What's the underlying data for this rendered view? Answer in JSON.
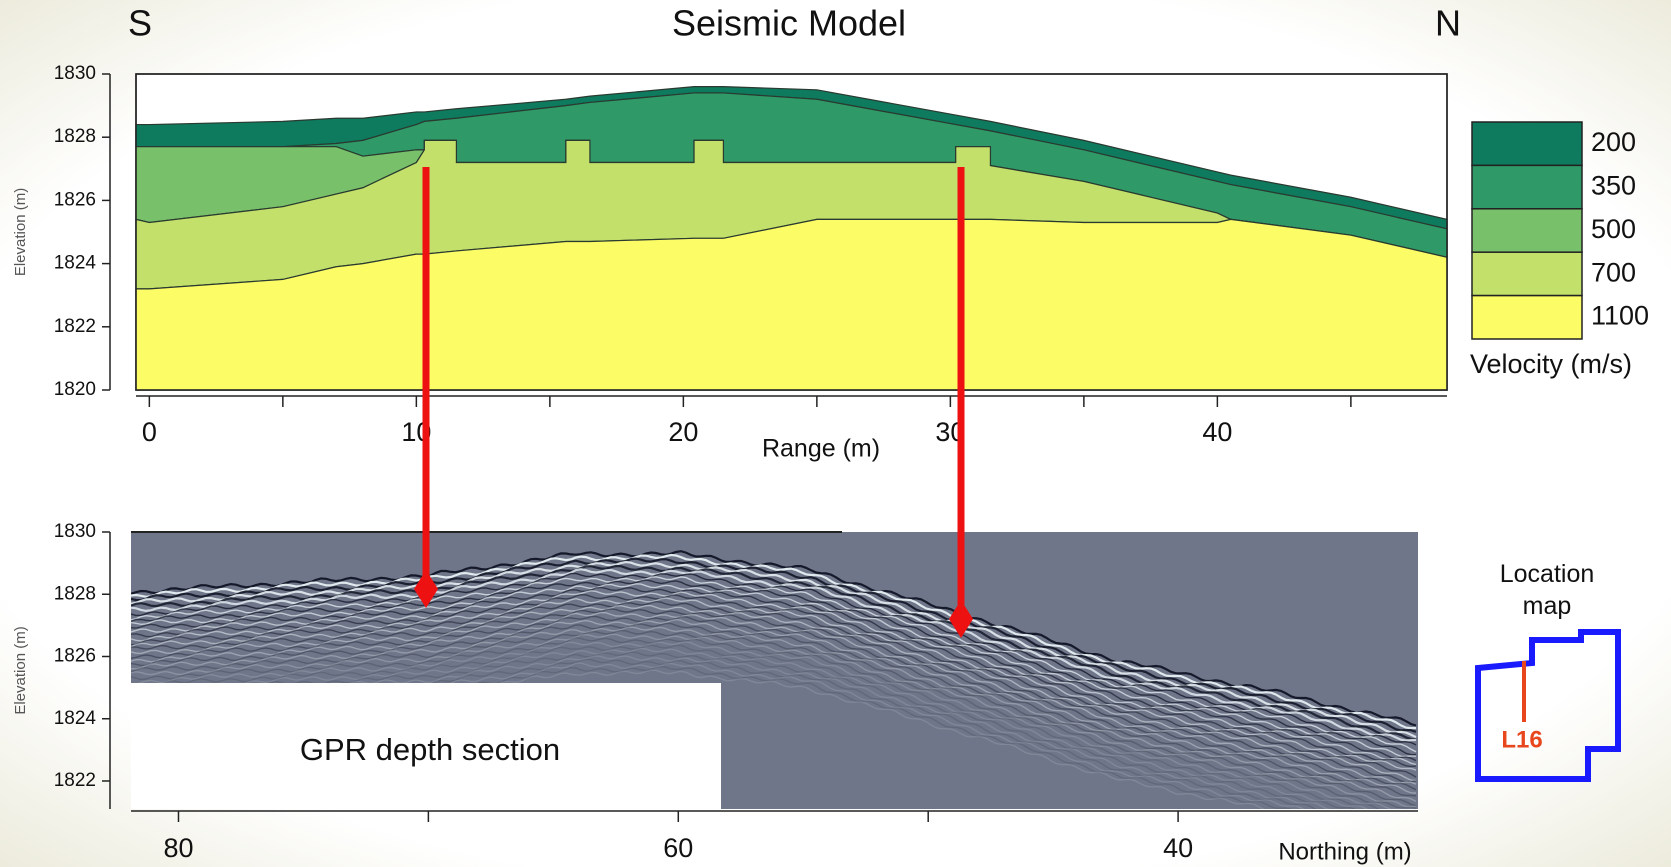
{
  "chart_data": [
    {
      "type": "area",
      "title": "Seismic Model",
      "left_label": "S",
      "right_label": "N",
      "xlabel": "Range (m)",
      "ylabel": "Elevation (m)",
      "xlim": [
        -0.5,
        48.6
      ],
      "ylim": [
        1820,
        1830
      ],
      "xticks": [
        0,
        10,
        20,
        30,
        40
      ],
      "xminor": [
        5,
        15,
        25,
        35,
        45
      ],
      "yticks": [
        1820,
        1822,
        1824,
        1826,
        1828,
        1830
      ],
      "legend_title": "Velocity (m/s)",
      "x": [
        -0.5,
        0,
        5,
        7,
        8,
        10,
        10.3,
        10.3,
        11.5,
        11.5,
        15.6,
        15.6,
        16.5,
        16.5,
        20.4,
        20.4,
        21.5,
        21.5,
        25,
        30.2,
        30.2,
        31.5,
        31.5,
        35,
        40,
        40.5,
        45,
        48.6
      ],
      "layers": [
        {
          "name": "200",
          "color": "#0e7a5e",
          "top": [
            1828.4,
            1828.4,
            1828.5,
            1828.6,
            1828.6,
            1828.8,
            1828.8,
            1828.8,
            1828.9,
            1828.9,
            1829.2,
            1829.2,
            1829.3,
            1829.3,
            1829.6,
            1829.6,
            1829.6,
            1829.6,
            1829.5,
            1828.7,
            1828.7,
            1828.5,
            1828.5,
            1827.9,
            1826.9,
            1826.8,
            1826.1,
            1825.4
          ]
        },
        {
          "name": "350",
          "color": "#2f9a68",
          "top": [
            1827.7,
            1827.7,
            1827.7,
            1827.8,
            1827.9,
            1828.4,
            1828.5,
            1828.5,
            1828.6,
            1828.6,
            1829.0,
            1829.0,
            1829.1,
            1829.1,
            1829.4,
            1829.4,
            1829.4,
            1829.4,
            1829.2,
            1828.4,
            1828.4,
            1828.2,
            1828.2,
            1827.6,
            1826.6,
            1826.5,
            1825.8,
            1825.1
          ]
        },
        {
          "name": "500",
          "color": "#78c06a",
          "top": [
            1827.7,
            1827.7,
            1827.7,
            1827.7,
            1827.4,
            1827.6,
            1827.6,
            1827.9,
            1827.9,
            1827.2,
            1827.2,
            1827.9,
            1827.9,
            1827.2,
            1827.2,
            1827.9,
            1827.9,
            1827.2,
            1827.2,
            1827.2,
            1827.7,
            1827.7,
            1827.1,
            1826.6,
            1825.6,
            1825.4,
            1824.9,
            1824.2
          ]
        },
        {
          "name": "700",
          "color": "#c2e06a",
          "top": [
            1825.4,
            1825.3,
            1825.8,
            1826.2,
            1826.4,
            1827.2,
            1827.6,
            1827.9,
            1827.9,
            1827.2,
            1827.2,
            1827.9,
            1827.9,
            1827.2,
            1827.2,
            1827.9,
            1827.9,
            1827.2,
            1827.2,
            1827.2,
            1827.7,
            1827.7,
            1827.1,
            1826.6,
            1825.6,
            1825.4,
            1824.9,
            1824.2
          ]
        },
        {
          "name": "1100",
          "color": "#fcfc66",
          "top": [
            1823.2,
            1823.2,
            1823.5,
            1823.9,
            1824.0,
            1824.3,
            1824.3,
            1824.3,
            1824.4,
            1824.4,
            1824.7,
            1824.7,
            1824.7,
            1824.7,
            1824.8,
            1824.8,
            1824.8,
            1824.8,
            1825.4,
            1825.4,
            1825.4,
            1825.4,
            1825.4,
            1825.3,
            1825.3,
            1825.4,
            1824.9,
            1824.2
          ]
        }
      ]
    },
    {
      "type": "image",
      "caption": "GPR depth section",
      "xlabel": "Northing (m)",
      "ylabel": "Elevation (m)",
      "xlim": [
        81.9,
        30.4
      ],
      "ylim": [
        1821.1,
        1830
      ],
      "xticks": [
        80,
        60,
        40
      ],
      "xminor": [
        70,
        50
      ],
      "yticks": [
        1822,
        1824,
        1826,
        1828,
        1830
      ]
    }
  ],
  "location_map": {
    "title": "Location map",
    "label": "L16"
  }
}
